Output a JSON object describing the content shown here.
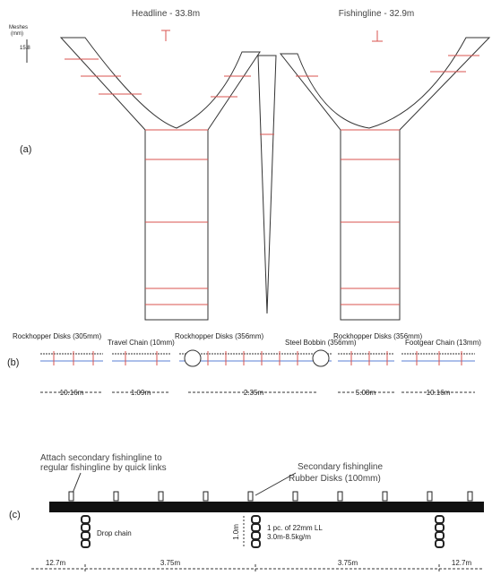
{
  "panel_a": {
    "label": "(a)",
    "headline": "Headline - 33.8m",
    "fishingline": "Fishingline - 32.9m",
    "mesh_legend": [
      "Meshes",
      "(mm)",
      "15.8"
    ]
  },
  "panel_b": {
    "label": "(b)",
    "components": [
      "Rockhopper Disks (305mm)",
      "Travel Chain (10mm)",
      "Rockhopper Disks (356mm)",
      "Steel Bobbin (356mm)",
      "Rockhopper Disks (356mm)",
      "Footgear Chain (13mm)"
    ],
    "dimensions": [
      "10.16m",
      "1.09m",
      "2.35m",
      "5.08m",
      "10.16m"
    ]
  },
  "panel_c": {
    "label": "(c)",
    "attach_note": [
      "Attach secondary fishingline to",
      "regular fishingline by quick links"
    ],
    "secondary": "Secondary fishingline",
    "disks": "Rubber Disks (100mm)",
    "drop_chain": "Drop chain",
    "drop_length": "1.0m",
    "chain_spec": [
      "1 pc. of 22mm LL",
      "3.0m-8.5kg/m"
    ],
    "dimensions": [
      "12.7m",
      "3.75m",
      "3.75m",
      "12.7m"
    ]
  }
}
